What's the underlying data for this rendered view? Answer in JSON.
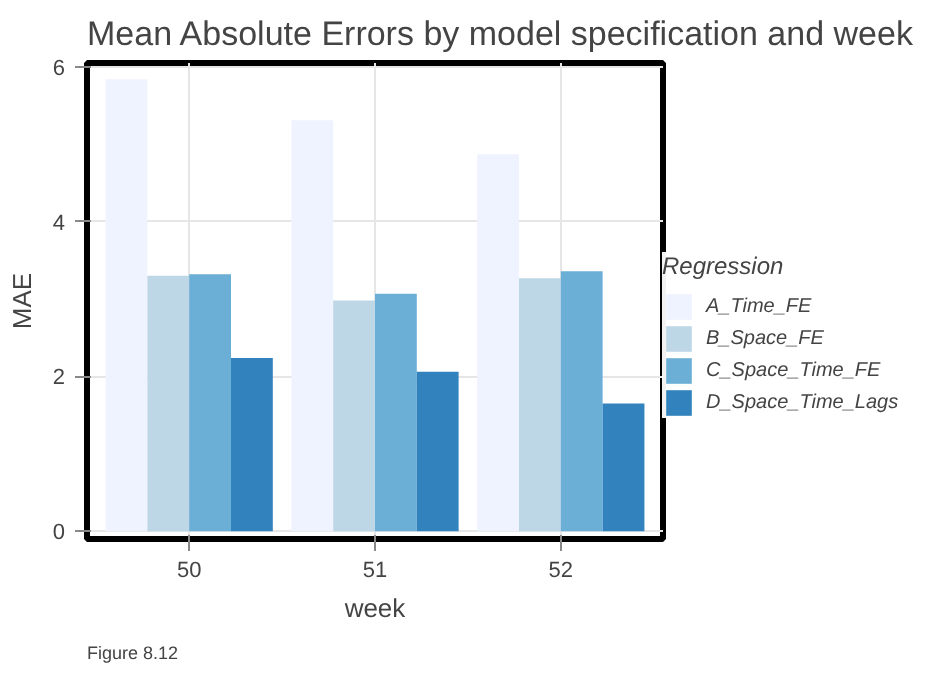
{
  "chart_data": {
    "type": "bar",
    "title": "Mean Absolute Errors by model specification and week",
    "xlabel": "week",
    "ylabel": "MAE",
    "legend_title": "Regression",
    "categories": [
      "50",
      "51",
      "52"
    ],
    "series": [
      {
        "name": "A_Time_FE",
        "color": "#eff3ff",
        "values": [
          5.84,
          5.31,
          4.87
        ]
      },
      {
        "name": "B_Space_FE",
        "color": "#bdd7e7",
        "values": [
          3.3,
          2.98,
          3.27
        ]
      },
      {
        "name": "C_Space_Time_FE",
        "color": "#6baed6",
        "values": [
          3.32,
          3.07,
          3.36
        ]
      },
      {
        "name": "D_Space_Time_Lags",
        "color": "#3182bd",
        "values": [
          2.24,
          2.06,
          1.65
        ]
      }
    ],
    "ylim": [
      -0.1,
      6.05
    ],
    "yticks": [
      0,
      2,
      4,
      6
    ],
    "grid": true,
    "legend": "right",
    "annotations": [
      "Figure 8.12"
    ]
  }
}
